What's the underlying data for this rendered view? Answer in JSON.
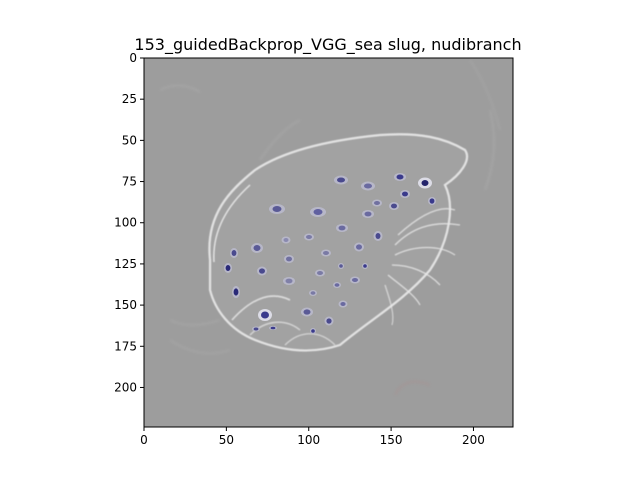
{
  "figure": {
    "title": "153_guidedBackprop_VGG_sea slug, nudibranch"
  },
  "image_panel": {
    "background_color": "#9d9d9d",
    "extent": [
      0,
      224,
      224,
      0
    ]
  },
  "axes": {
    "x": {
      "min": 0,
      "max": 224,
      "ticks": [
        0,
        50,
        100,
        150,
        200
      ],
      "tick_labels": [
        "0",
        "50",
        "100",
        "150",
        "200"
      ]
    },
    "y": {
      "min": 0,
      "max": 224,
      "ticks": [
        0,
        25,
        50,
        75,
        100,
        125,
        150,
        175,
        200
      ],
      "tick_labels": [
        "0",
        "25",
        "50",
        "75",
        "100",
        "125",
        "150",
        "175",
        "200"
      ],
      "inverted": true
    }
  },
  "colors": {
    "spot": "#3a3a8c",
    "spot_halo": "#b3b3c8",
    "outline": "#e8e8e8",
    "noise_red": "#b08a8a"
  }
}
